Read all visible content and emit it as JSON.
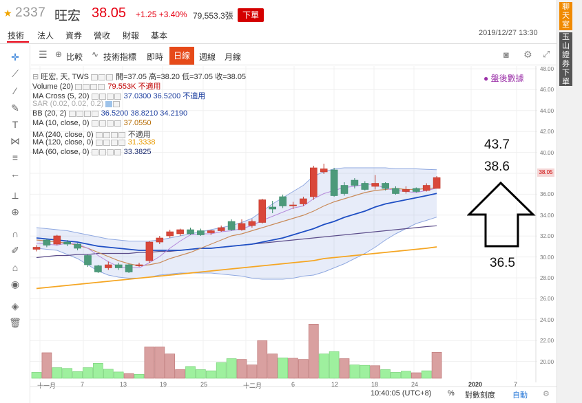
{
  "header": {
    "code": "2337",
    "name": "旺宏",
    "price": "38.05",
    "change": "+1.25 +3.40%",
    "volume": "79,553.3張",
    "order_button": "下單"
  },
  "tabs": [
    "技術",
    "法人",
    "資券",
    "營收",
    "財報",
    "基本"
  ],
  "datetime": "2019/12/27 13:30",
  "side": {
    "chat": "聊天室",
    "order": "玉山證券下單"
  },
  "toolbar": {
    "compare": "比較",
    "indicators": "技術指標",
    "intraday": "即時",
    "daily": "日線",
    "weekly": "週線",
    "monthly": "月線"
  },
  "indicators": [
    {
      "label": "旺宏, 天, TWS",
      "values": "開=37.05  高=38.20  低=37.05  收=38.05"
    },
    {
      "label": "Volume (20)",
      "values": "79.553K  不適用"
    },
    {
      "label": "MA Cross (5, 20)",
      "values": "37.0300  36.5200  不適用"
    },
    {
      "label": "SAR (0.02, 0.02, 0.2)",
      "values": ""
    },
    {
      "label": "BB (20, 2)",
      "values": "36.5200  38.8210  34.2190"
    },
    {
      "label": "MA (10, close, 0)",
      "values": "37.0550"
    },
    {
      "label": "MA (240, close, 0)",
      "values": "不適用"
    },
    {
      "label": "MA (120, close, 0)",
      "values": "31.3338"
    },
    {
      "label": "MA (60, close, 0)",
      "values": "33.3825"
    }
  ],
  "after_hours": "盤後數據",
  "y_ticks": [
    "48.00",
    "46.00",
    "44.00",
    "42.00",
    "40.00",
    "38.00",
    "36.00",
    "34.00",
    "32.00",
    "30.00",
    "28.00",
    "26.00",
    "24.00",
    "22.00",
    "20.00"
  ],
  "price_tag": "38.05",
  "x_ticks": [
    "十一月",
    "7",
    "13",
    "19",
    "25",
    "十二月",
    "6",
    "12",
    "18",
    "24",
    "2020",
    "7"
  ],
  "status": {
    "time": "10:40:05 (UTC+8)",
    "percent": "%",
    "log": "對數刻度",
    "auto": "自動"
  },
  "annotations": {
    "top": "43.7",
    "mid": "38.6",
    "bottom": "36.5"
  },
  "chart_data": {
    "type": "candlestick",
    "candles": [
      {
        "o": 31.1,
        "c": 31.3,
        "h": 31.5,
        "l": 30.9
      },
      {
        "o": 32.0,
        "c": 31.5,
        "h": 32.1,
        "l": 31.3
      },
      {
        "o": 31.6,
        "c": 32.4,
        "h": 32.5,
        "l": 31.5
      },
      {
        "o": 31.8,
        "c": 31.6,
        "h": 32.0,
        "l": 31.4
      },
      {
        "o": 31.6,
        "c": 31.2,
        "h": 31.7,
        "l": 31.0
      },
      {
        "o": 30.5,
        "c": 29.6,
        "h": 30.6,
        "l": 29.4
      },
      {
        "o": 29.5,
        "c": 28.9,
        "h": 29.6,
        "l": 28.8
      },
      {
        "o": 29.3,
        "c": 29.6,
        "h": 29.9,
        "l": 29.1
      },
      {
        "o": 29.6,
        "c": 29.3,
        "h": 29.8,
        "l": 29.1
      },
      {
        "o": 29.6,
        "c": 28.9,
        "h": 29.7,
        "l": 28.8
      },
      {
        "o": 29.5,
        "c": 29.6,
        "h": 29.8,
        "l": 29.4
      },
      {
        "o": 30.0,
        "c": 31.8,
        "h": 31.9,
        "l": 29.8
      },
      {
        "o": 31.8,
        "c": 32.2,
        "h": 32.4,
        "l": 31.6
      },
      {
        "o": 32.4,
        "c": 32.8,
        "h": 33.0,
        "l": 32.2
      },
      {
        "o": 32.6,
        "c": 33.0,
        "h": 33.1,
        "l": 32.4
      },
      {
        "o": 33.0,
        "c": 32.6,
        "h": 33.2,
        "l": 32.5
      },
      {
        "o": 32.9,
        "c": 32.5,
        "h": 33.1,
        "l": 32.4
      },
      {
        "o": 32.7,
        "c": 32.9,
        "h": 33.0,
        "l": 32.5
      },
      {
        "o": 32.9,
        "c": 33.2,
        "h": 33.4,
        "l": 32.8
      },
      {
        "o": 33.8,
        "c": 33.0,
        "h": 34.0,
        "l": 32.9
      },
      {
        "o": 33.0,
        "c": 33.6,
        "h": 34.0,
        "l": 32.9
      },
      {
        "o": 33.4,
        "c": 33.8,
        "h": 34.0,
        "l": 33.2
      },
      {
        "o": 33.7,
        "c": 35.9,
        "h": 36.0,
        "l": 33.6
      },
      {
        "o": 35.2,
        "c": 35.0,
        "h": 35.8,
        "l": 34.6
      },
      {
        "o": 36.2,
        "c": 35.3,
        "h": 36.4,
        "l": 35.1
      },
      {
        "o": 35.4,
        "c": 35.4,
        "h": 35.7,
        "l": 35.0
      },
      {
        "o": 35.5,
        "c": 36.0,
        "h": 36.2,
        "l": 35.3
      },
      {
        "o": 36.2,
        "c": 39.0,
        "h": 39.2,
        "l": 35.9
      },
      {
        "o": 38.6,
        "c": 38.9,
        "h": 39.4,
        "l": 38.4
      },
      {
        "o": 38.8,
        "c": 36.3,
        "h": 39.0,
        "l": 36.2
      },
      {
        "o": 37.3,
        "c": 36.5,
        "h": 37.6,
        "l": 36.3
      },
      {
        "o": 37.8,
        "c": 37.3,
        "h": 38.0,
        "l": 37.0
      },
      {
        "o": 37.5,
        "c": 36.9,
        "h": 37.7,
        "l": 36.8
      },
      {
        "o": 37.2,
        "c": 37.5,
        "h": 38.3,
        "l": 36.9
      },
      {
        "o": 37.5,
        "c": 37.0,
        "h": 37.6,
        "l": 36.8
      },
      {
        "o": 37.0,
        "c": 36.5,
        "h": 37.2,
        "l": 36.4
      },
      {
        "o": 36.7,
        "c": 36.9,
        "h": 37.2,
        "l": 36.5
      },
      {
        "o": 37.0,
        "c": 36.7,
        "h": 37.1,
        "l": 36.6
      },
      {
        "o": 36.8,
        "c": 37.3,
        "h": 37.5,
        "l": 36.7
      },
      {
        "o": 37.0,
        "c": 38.05,
        "h": 38.2,
        "l": 37.05
      }
    ],
    "volume": [
      {
        "v": 1.5,
        "up": false
      },
      {
        "v": 6.5,
        "up": true
      },
      {
        "v": 2.7,
        "up": false
      },
      {
        "v": 2.5,
        "up": false
      },
      {
        "v": 1.7,
        "up": false
      },
      {
        "v": 2.7,
        "up": false
      },
      {
        "v": 3.8,
        "up": false
      },
      {
        "v": 2.3,
        "up": false
      },
      {
        "v": 1.6,
        "up": false
      },
      {
        "v": 1.2,
        "up": true
      },
      {
        "v": 1.0,
        "up": false
      },
      {
        "v": 8.0,
        "up": true
      },
      {
        "v": 8.0,
        "up": true
      },
      {
        "v": 6.2,
        "up": true
      },
      {
        "v": 2.2,
        "up": true
      },
      {
        "v": 3.0,
        "up": false
      },
      {
        "v": 2.2,
        "up": false
      },
      {
        "v": 1.9,
        "up": false
      },
      {
        "v": 4.0,
        "up": false
      },
      {
        "v": 5.0,
        "up": false
      },
      {
        "v": 4.8,
        "up": true
      },
      {
        "v": 3.4,
        "up": true
      },
      {
        "v": 9.6,
        "up": true
      },
      {
        "v": 6.2,
        "up": true
      },
      {
        "v": 5.2,
        "up": false
      },
      {
        "v": 5.1,
        "up": true
      },
      {
        "v": 4.8,
        "up": true
      },
      {
        "v": 13.8,
        "up": true
      },
      {
        "v": 6.2,
        "up": false
      },
      {
        "v": 6.8,
        "up": false
      },
      {
        "v": 5.0,
        "up": true
      },
      {
        "v": 3.4,
        "up": false
      },
      {
        "v": 3.3,
        "up": false
      },
      {
        "v": 3.2,
        "up": true
      },
      {
        "v": 2.2,
        "up": false
      },
      {
        "v": 1.5,
        "up": false
      },
      {
        "v": 1.8,
        "up": false
      },
      {
        "v": 1.4,
        "up": true
      },
      {
        "v": 1.9,
        "up": false
      },
      {
        "v": 6.6,
        "up": true
      }
    ],
    "ma20": [
      32.2,
      32.1,
      32.0,
      31.9,
      31.8,
      31.6,
      31.4,
      31.3,
      31.2,
      31.1,
      31.0,
      31.0,
      31.0,
      31.0,
      31.0,
      31.1,
      31.2,
      31.2,
      31.3,
      31.4,
      31.5,
      31.6,
      31.8,
      32.0,
      32.2,
      32.5,
      32.8,
      33.1,
      33.5,
      33.8,
      34.2,
      34.5,
      34.8,
      35.2,
      35.5,
      35.7,
      35.9,
      36.1,
      36.3,
      36.52
    ],
    "ma10": [
      32.0,
      31.9,
      31.8,
      31.7,
      31.5,
      31.2,
      30.8,
      30.4,
      30.0,
      29.7,
      29.5,
      29.6,
      29.8,
      30.2,
      30.5,
      30.8,
      31.2,
      31.6,
      32.0,
      32.4,
      32.6,
      32.9,
      33.2,
      33.5,
      33.8,
      34.1,
      34.4,
      34.8,
      35.3,
      35.7,
      36.0,
      36.3,
      36.6,
      36.8,
      36.9,
      37.0,
      36.9,
      36.9,
      37.0,
      37.055
    ],
    "ma5": [
      31.7,
      31.6,
      31.5,
      31.7,
      31.6,
      31.2,
      30.5,
      29.9,
      29.4,
      29.3,
      29.3,
      29.8,
      30.4,
      31.2,
      31.9,
      32.5,
      32.6,
      32.6,
      32.8,
      32.9,
      33.1,
      33.4,
      33.9,
      34.3,
      34.7,
      35.1,
      35.3,
      36.0,
      36.5,
      36.8,
      37.1,
      37.2,
      37.4,
      37.4,
      37.0,
      36.8,
      36.7,
      36.6,
      36.8,
      37.03
    ],
    "ma60": [
      30.3,
      30.4,
      30.5,
      30.5,
      30.6,
      30.6,
      30.7,
      30.7,
      30.7,
      30.7,
      30.8,
      30.8,
      30.9,
      30.9,
      31.0,
      31.1,
      31.2,
      31.2,
      31.3,
      31.4,
      31.5,
      31.6,
      31.7,
      31.8,
      31.9,
      32.0,
      32.1,
      32.2,
      32.3,
      32.4,
      32.5,
      32.6,
      32.7,
      32.8,
      32.9,
      33.0,
      33.1,
      33.2,
      33.3,
      33.38
    ],
    "ma120": [
      27.3,
      27.4,
      27.5,
      27.6,
      27.7,
      27.8,
      27.9,
      28.0,
      28.1,
      28.2,
      28.3,
      28.4,
      28.5,
      28.6,
      28.7,
      28.8,
      28.9,
      29.0,
      29.1,
      29.2,
      29.3,
      29.4,
      29.5,
      29.6,
      29.7,
      29.8,
      29.9,
      30.0,
      30.2,
      30.3,
      30.4,
      30.5,
      30.6,
      30.7,
      30.8,
      30.9,
      31.0,
      31.1,
      31.2,
      31.33
    ],
    "bb_upper": [
      33.2,
      33.1,
      33.0,
      32.9,
      32.7,
      32.5,
      32.3,
      32.1,
      32.0,
      31.9,
      31.9,
      31.9,
      32.0,
      32.2,
      32.4,
      32.6,
      32.8,
      33.0,
      33.2,
      33.4,
      33.7,
      34.1,
      34.8,
      35.5,
      36.1,
      36.7,
      37.3,
      38.2,
      38.6,
      38.9,
      39.0,
      39.0,
      39.0,
      39.0,
      39.0,
      38.9,
      38.9,
      38.9,
      38.85,
      38.82
    ],
    "bb_lower": [
      31.2,
      31.1,
      31.0,
      30.6,
      30.2,
      29.6,
      29.0,
      28.6,
      28.4,
      28.3,
      28.3,
      28.4,
      28.6,
      28.7,
      28.8,
      28.8,
      28.8,
      28.8,
      28.7,
      28.6,
      28.5,
      28.3,
      28.2,
      28.2,
      28.2,
      28.3,
      28.5,
      28.6,
      28.9,
      29.3,
      29.7,
      30.2,
      30.7,
      31.3,
      32.0,
      32.6,
      33.1,
      33.6,
      33.9,
      34.22
    ],
    "y_range": [
      19,
      48.6
    ]
  }
}
